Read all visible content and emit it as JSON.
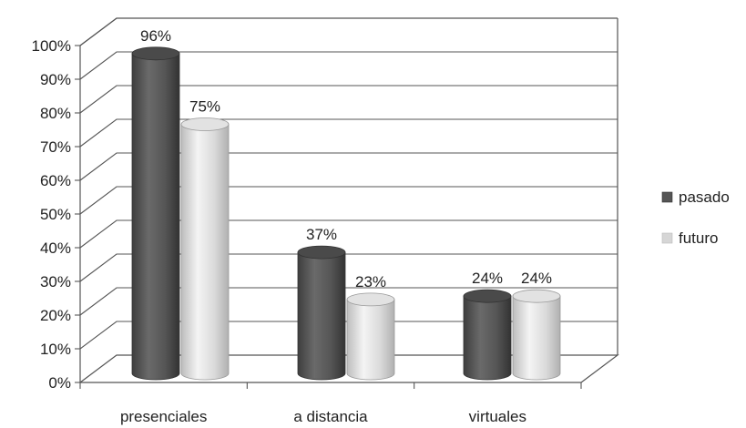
{
  "chart_data": {
    "type": "bar",
    "categories": [
      "presenciales",
      "a distancia",
      "virtuales"
    ],
    "series": [
      {
        "name": "pasado",
        "values": [
          96,
          37,
          24
        ],
        "color": "#555555"
      },
      {
        "name": "futuro",
        "values": [
          75,
          23,
          24
        ],
        "color": "#d6d6d6"
      }
    ],
    "data_labels": [
      [
        "96%",
        "37%",
        "24%"
      ],
      [
        "75%",
        "23%",
        "24%"
      ]
    ],
    "yticks": [
      "0%",
      "10%",
      "20%",
      "30%",
      "40%",
      "50%",
      "60%",
      "70%",
      "80%",
      "90%",
      "100%"
    ],
    "ylim": [
      0,
      100
    ],
    "grid": true,
    "legend": "right",
    "style": "3d-cylinder"
  }
}
